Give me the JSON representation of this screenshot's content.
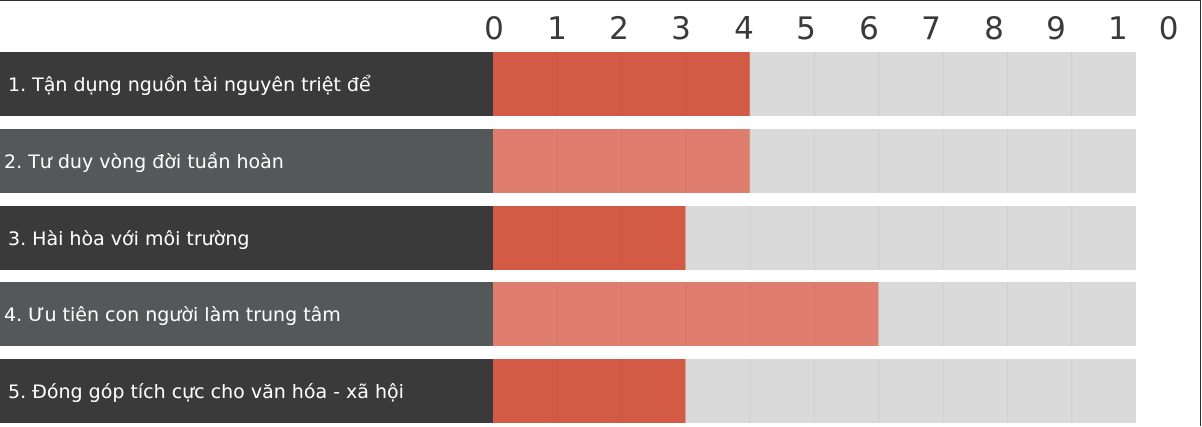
{
  "chart_data": {
    "type": "bar",
    "orientation": "horizontal",
    "x_ticks": [
      "0",
      "1",
      "2",
      "3",
      "4",
      "5",
      "6",
      "7",
      "8",
      "9",
      "1 0"
    ],
    "xlim": [
      0,
      10
    ],
    "categories": [
      "1. Tận dụng nguồn tài nguyên triệt để",
      "2. Tư duy vòng đời tuần hoàn",
      "3. Hài hòa với môi trường",
      "4. Ưu tiên con người làm trung tâm",
      "5. Đóng góp tích cực cho văn hóa - xã hội"
    ],
    "values": [
      4,
      4,
      3,
      6,
      3
    ],
    "grid": true,
    "legend": "none"
  },
  "colors": {
    "label_dark": "#3a3a3a",
    "label_grey": "#545859",
    "bar_dark": "#d35a45",
    "bar_light": "#df7d6e",
    "track": "#dadada",
    "cell_divider": "#cfcfcf",
    "tick_text": "#3a3a3a"
  }
}
